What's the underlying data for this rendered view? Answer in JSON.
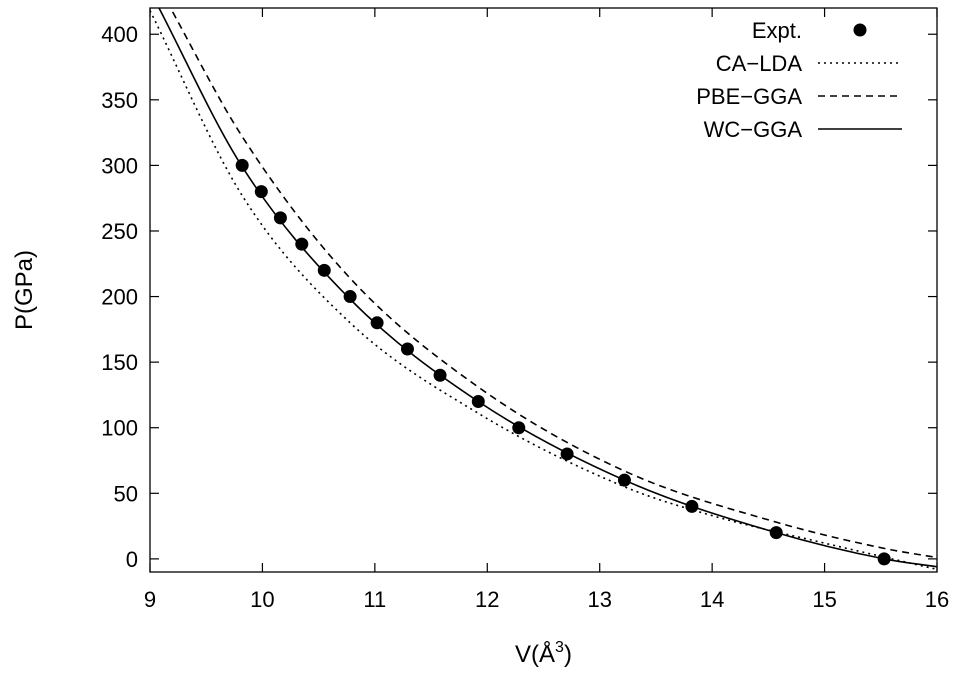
{
  "chart_data": {
    "type": "line",
    "title": "",
    "xlabel": "V(Å",
    "xlabel_sup": "3",
    "xlabel_tail": ")",
    "ylabel": "P(GPa)",
    "xlim": [
      9,
      16
    ],
    "ylim": [
      -10,
      420
    ],
    "xticks": [
      9,
      10,
      11,
      12,
      13,
      14,
      15,
      16
    ],
    "yticks": [
      0,
      50,
      100,
      150,
      200,
      250,
      300,
      350,
      400
    ],
    "grid": false,
    "legend_position": "top-right",
    "series": [
      {
        "name": "Expt.",
        "style": "points",
        "marker": "filled-circle",
        "color": "#000000",
        "x": [
          9.82,
          9.99,
          10.16,
          10.35,
          10.55,
          10.78,
          11.02,
          11.29,
          11.58,
          11.92,
          12.28,
          12.71,
          13.22,
          13.82,
          14.57,
          15.53
        ],
        "y": [
          300,
          280,
          260,
          240,
          220,
          200,
          180,
          160,
          140,
          120,
          100,
          80,
          60,
          40,
          20,
          0
        ]
      },
      {
        "name": "CA−LDA",
        "style": "dotted",
        "color": "#000000",
        "x": [
          9.0,
          9.82,
          10.78,
          11.92,
          13.22,
          14.0,
          15.0,
          15.6,
          16.0
        ],
        "y": [
          418,
          277,
          180,
          111,
          55,
          33,
          12,
          0,
          -8
        ]
      },
      {
        "name": "PBE−GGA",
        "style": "dashed",
        "color": "#000000",
        "x": [
          9.15,
          9.82,
          10.78,
          11.92,
          13.22,
          14.57,
          15.53,
          16.0
        ],
        "y": [
          425,
          322,
          214,
          131,
          67,
          28,
          8,
          1
        ]
      },
      {
        "name": "WC−GGA",
        "style": "solid",
        "color": "#000000",
        "x": [
          9.05,
          9.82,
          10.78,
          11.92,
          13.22,
          14.57,
          15.53,
          16.0
        ],
        "y": [
          425,
          299,
          198,
          120,
          60,
          20,
          0,
          -6
        ]
      }
    ]
  }
}
